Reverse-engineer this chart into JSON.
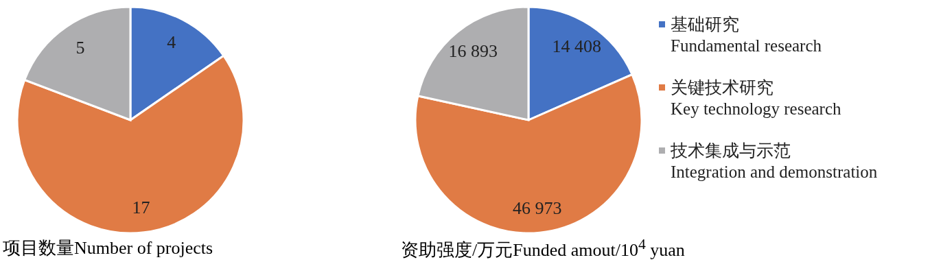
{
  "chart_data": [
    {
      "type": "pie",
      "title": "项目数量Number of projects",
      "values": [
        4,
        17,
        5
      ],
      "colors": [
        "#4472c4",
        "#e07b45",
        "#aeaeb0"
      ],
      "data_labels": true
    },
    {
      "type": "pie",
      "title": "资助强度/万元Funded amout/10$^{4}$ yuan",
      "categories": [
        "基础研究\nFundamental research",
        "关键技术研究\nKey technology research",
        "技术集成与示范\nIntegration and demonstration"
      ],
      "values": [
        14408,
        46973,
        16893
      ],
      "value_labels": [
        "14 408",
        "46 973",
        "16 893"
      ],
      "colors": [
        "#4472c4",
        "#e07b45",
        "#aeaeb0"
      ],
      "legend": "right"
    }
  ]
}
